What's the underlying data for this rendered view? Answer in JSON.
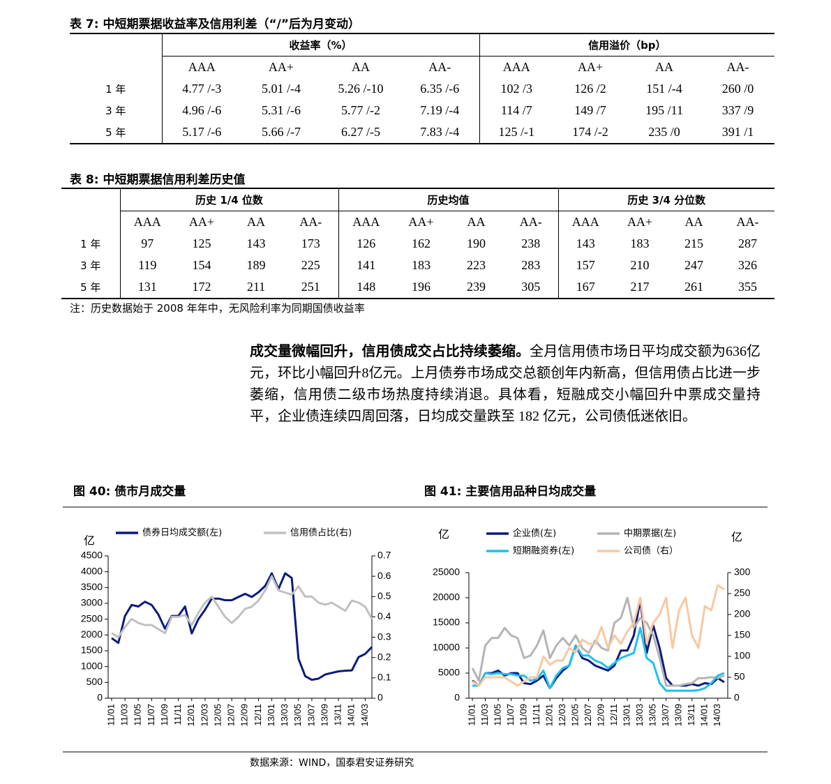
{
  "table7": {
    "title": "表 7: 中短期票据收益率及信用利差（“/”后为月变动）",
    "groups": [
      "收益率（%）",
      "信用溢价（bp）"
    ],
    "columns": [
      "AAA",
      "AA+",
      "AA",
      "AA-",
      "AAA",
      "AA+",
      "AA",
      "AA-"
    ],
    "rows": [
      [
        "1 年",
        "4.77 /-3",
        "5.01 /-4",
        "5.26 /-10",
        "6.35 /-6",
        "102 /3",
        "126 /2",
        "151 /-4",
        "260 /0"
      ],
      [
        "3 年",
        "4.96 /-6",
        "5.31 /-6",
        "5.77 /-2",
        "7.19 /-4",
        "114 /7",
        "149 /7",
        "195 /11",
        "337 /9"
      ],
      [
        "5 年",
        "5.17 /-6",
        "5.66 /-7",
        "6.27 /-5",
        "7.83 /-4",
        "125 /-1",
        "174 /-2",
        "235 /0",
        "391 /1"
      ]
    ]
  },
  "table8": {
    "title": "表 8: 中短期票据信用利差历史值",
    "groups": [
      "历史 1/4 位数",
      "历史均值",
      "历史 3/4 分位数"
    ],
    "columns": [
      "AAA",
      "AA+",
      "AA",
      "AA-",
      "AAA",
      "AA+",
      "AA",
      "AA-",
      "AAA",
      "AA+",
      "AA",
      "AA-"
    ],
    "rows": [
      [
        "1 年",
        97,
        125,
        143,
        173,
        126,
        162,
        190,
        238,
        143,
        183,
        215,
        287
      ],
      [
        "3 年",
        119,
        154,
        189,
        225,
        141,
        183,
        223,
        283,
        157,
        210,
        247,
        326
      ],
      [
        "5 年",
        131,
        172,
        211,
        251,
        148,
        196,
        239,
        305,
        167,
        217,
        261,
        355
      ]
    ],
    "note": "注：历史数据始于 2008 年年中，无风险利率为同期国债收益率"
  },
  "paragraph": {
    "lead": "成交量微幅回升，信用债成交占比持续萎缩。",
    "text": "全月信用债市场日平均成交额为636亿元，环比小幅回升8亿元。上月债券市场成交总额创年内新高，但信用债占比进一步萎缩，信用债二级市场热度持续消退。具体看，短融成交小幅回升中票成交量持平，企业债连续四周回落，日均成交量跌至 182 亿元，公司债低迷依旧。"
  },
  "chart_data": [
    {
      "type": "line",
      "title": "图 40: 债市月成交量",
      "y_label": "亿",
      "categories": [
        "11/01",
        null,
        "11/03",
        null,
        "11/05",
        null,
        "11/07",
        null,
        "11/09",
        null,
        "11/11",
        null,
        "12/01",
        null,
        "12/03",
        null,
        "12/05",
        null,
        "12/07",
        null,
        "12/09",
        null,
        "12/11",
        null,
        "13/01",
        null,
        "13/03",
        null,
        "13/05",
        null,
        "13/07",
        null,
        "13/09",
        null,
        "13/11",
        null,
        "14/01",
        null,
        "14/03",
        null
      ],
      "series": [
        {
          "name": "债券日均成交额(左)",
          "color": "#0c1a7a",
          "values": [
            1900,
            1750,
            2600,
            2950,
            2900,
            3050,
            2950,
            2650,
            2200,
            2600,
            2600,
            2900,
            2050,
            2500,
            2800,
            3150,
            3150,
            3100,
            3100,
            3200,
            3300,
            3200,
            3350,
            3550,
            3950,
            3450,
            3950,
            3800,
            1250,
            700,
            580,
            620,
            750,
            800,
            850,
            870,
            880,
            1300,
            1400,
            1620
          ]
        },
        {
          "name": "信用债占比(右)",
          "color": "#c0c0c0",
          "axis": "y2",
          "values": [
            0.32,
            0.3,
            0.35,
            0.39,
            0.37,
            0.36,
            0.36,
            0.34,
            0.32,
            0.4,
            0.4,
            0.41,
            0.36,
            0.42,
            0.47,
            0.5,
            0.45,
            0.4,
            0.37,
            0.4,
            0.44,
            0.45,
            0.48,
            0.53,
            0.6,
            0.53,
            0.52,
            0.51,
            0.55,
            0.5,
            0.5,
            0.47,
            0.46,
            0.47,
            0.45,
            0.43,
            0.48,
            0.47,
            0.45,
            0.39
          ]
        }
      ],
      "ylim": [
        0,
        4500
      ],
      "yticks": [
        0,
        500,
        1000,
        1500,
        2000,
        2500,
        3000,
        3500,
        4000,
        4500
      ],
      "y2lim": [
        0,
        0.7
      ],
      "y2ticks": [
        0,
        0.1,
        0.2,
        0.3,
        0.4,
        0.5,
        0.6,
        0.7
      ]
    },
    {
      "type": "line",
      "title": "图 41: 主要信用品种日均成交量",
      "y_label": "亿",
      "y2_label": "亿",
      "categories": [
        "11/01",
        null,
        "11/03",
        null,
        "11/05",
        null,
        "11/07",
        null,
        "11/09",
        null,
        "11/11",
        null,
        "12/01",
        null,
        "12/03",
        null,
        "12/05",
        null,
        "12/07",
        null,
        "12/09",
        null,
        "12/11",
        null,
        "13/01",
        null,
        "13/03",
        null,
        "13/05",
        null,
        "13/07",
        null,
        "13/09",
        null,
        "13/11",
        null,
        "14/01",
        null,
        "14/03",
        null
      ],
      "series": [
        {
          "name": "企业债(左)",
          "color": "#0c1a7a",
          "values": [
            3500,
            2500,
            5000,
            5000,
            5500,
            4500,
            5000,
            5000,
            3000,
            2800,
            3500,
            4500,
            2000,
            4000,
            5500,
            6500,
            10500,
            8000,
            7500,
            6500,
            6000,
            5500,
            6500,
            9500,
            9500,
            12500,
            19500,
            9000,
            14500,
            10000,
            4000,
            2500,
            2500,
            2500,
            2800,
            2500,
            3000,
            2800,
            4000,
            3200
          ]
        },
        {
          "name": "中期票据(左)",
          "color": "#b4b4b4",
          "values": [
            6000,
            3500,
            10500,
            12000,
            12000,
            14000,
            12500,
            12000,
            8000,
            8500,
            10500,
            13500,
            8000,
            10500,
            12000,
            10500,
            12500,
            10000,
            9000,
            11500,
            10000,
            9500,
            15000,
            16000,
            20000,
            14000,
            16000,
            15000,
            12500,
            8000,
            2500,
            2500,
            2500,
            2800,
            3000,
            4000,
            4000,
            4200,
            4000,
            4500
          ]
        },
        {
          "name": "短期融资券(左)",
          "color": "#1ec0f0",
          "values": [
            2500,
            2500,
            5000,
            4800,
            5000,
            4800,
            4800,
            4500,
            4500,
            3500,
            3800,
            5500,
            2000,
            4500,
            6000,
            6500,
            10500,
            8500,
            8500,
            7500,
            7000,
            6000,
            7000,
            8000,
            8500,
            9000,
            14000,
            8000,
            7000,
            3000,
            1500,
            1500,
            1500,
            1500,
            1500,
            1600,
            2000,
            3000,
            4500,
            5000
          ]
        },
        {
          "name": "公司债（右）",
          "color": "#f8c8a0",
          "axis": "y2",
          "values": [
            40,
            30,
            50,
            50,
            50,
            50,
            40,
            30,
            40,
            50,
            50,
            100,
            80,
            90,
            90,
            120,
            110,
            140,
            130,
            130,
            170,
            120,
            150,
            130,
            160,
            180,
            240,
            130,
            180,
            200,
            240,
            120,
            210,
            240,
            150,
            120,
            220,
            210,
            270,
            260
          ]
        }
      ],
      "ylim": [
        0,
        25000
      ],
      "yticks": [
        0,
        5000,
        10000,
        15000,
        20000,
        25000
      ],
      "y2lim": [
        0,
        300
      ],
      "y2ticks": [
        0,
        50,
        100,
        150,
        200,
        250,
        300
      ]
    }
  ],
  "source": "数据来源：WIND，国泰君安证券研究"
}
